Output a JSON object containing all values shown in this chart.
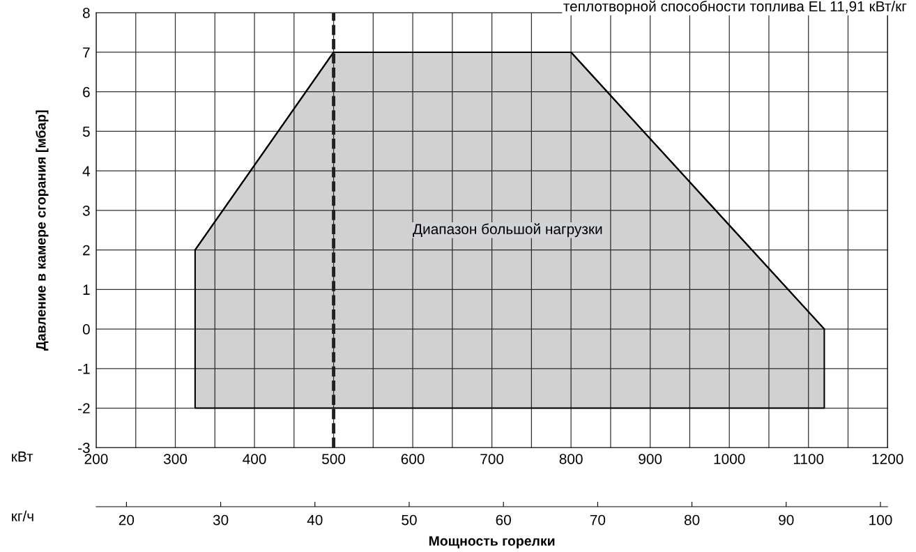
{
  "chart_data": {
    "type": "line",
    "ylabel": "Давление в камере сгорания [мбар]",
    "x2label": "Мощность горелки",
    "annotations": [
      "Диапазон большой нагрузки",
      "теплотворной способности топлива EL 11,91 кВт/кг",
      "кВт",
      "кг/ч"
    ],
    "series": [
      {
        "color": "#000000",
        "x": [
          325,
          500,
          800,
          1120
        ],
        "values": [
          2,
          7,
          7,
          0
        ],
        "lower": [
          -2,
          -2,
          -2,
          -2
        ],
        "upper": [
          2,
          7,
          7,
          0
        ]
      }
    ],
    "xlim": [
      200,
      1200
    ],
    "xticks": [
      200,
      {
        "value": 250,
        "label": null
      },
      300,
      {
        "value": 350,
        "label": null
      },
      400,
      {
        "value": 450,
        "label": null
      },
      500,
      {
        "value": 550,
        "label": null
      },
      600,
      {
        "value": 650,
        "label": null
      },
      700,
      {
        "value": 750,
        "label": null
      },
      800,
      {
        "value": 850,
        "label": null
      },
      900,
      {
        "value": 950,
        "label": null
      },
      1000,
      {
        "value": 1050,
        "label": null
      },
      1100,
      {
        "value": 1150,
        "label": null
      },
      1200
    ],
    "ylim": [
      -3,
      8
    ],
    "yticks": [
      -3,
      -2,
      -1,
      0,
      1,
      2,
      3,
      4,
      5,
      6,
      7,
      8
    ],
    "x2lim": [
      16.79,
      100.76
    ],
    "x2ticks": [
      20,
      30,
      40,
      50,
      60,
      70,
      80,
      90,
      100
    ],
    "ref_lines": [
      {
        "axis": "x",
        "value": 500,
        "label": null,
        "color": "#222222",
        "line_style": "dashed"
      }
    ],
    "grid": true,
    "legend": false
  }
}
